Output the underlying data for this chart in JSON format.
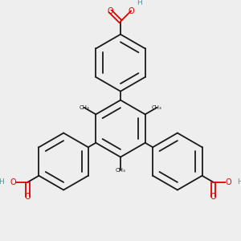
{
  "bg": "#eeeeee",
  "bond_color": "#1a1a1a",
  "O_color": "#e00000",
  "H_color": "#5a9090",
  "lw": 1.3,
  "r": 0.42,
  "figsize": [
    3.0,
    3.0
  ],
  "dpi": 100,
  "xlim": [
    -1.55,
    1.55
  ],
  "ylim": [
    -1.65,
    1.75
  ]
}
